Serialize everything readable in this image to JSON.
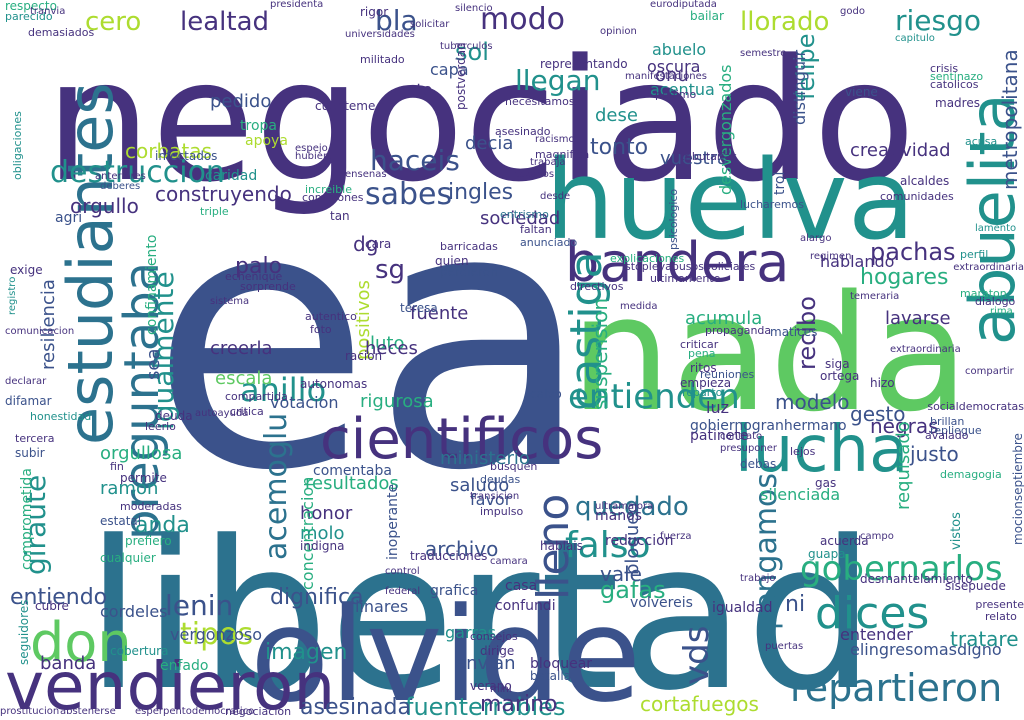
{
  "palette": {
    "c1": "#440154",
    "c2": "#46327e",
    "c3": "#3b528b",
    "c4": "#2c728e",
    "c5": "#21918c",
    "c6": "#28ae80",
    "c7": "#5ec962",
    "c8": "#addc30",
    "c9": "#fde725"
  },
  "words": [
    {
      "text": "ea",
      "color": "c3"
    },
    {
      "text": "libertad",
      "color": "c4"
    },
    {
      "text": "negociado",
      "color": "c2"
    },
    {
      "text": "nada",
      "color": "c7"
    },
    {
      "text": "olvide",
      "color": "c3"
    },
    {
      "text": "huelva",
      "color": "c5"
    },
    {
      "text": "vendieron",
      "color": "c2"
    },
    {
      "text": "estudiantes",
      "color": "c4"
    },
    {
      "text": "abuelita",
      "color": "c5"
    },
    {
      "text": "cientificos",
      "color": "c2"
    },
    {
      "text": "preguntaba",
      "color": "c4"
    },
    {
      "text": "lucha",
      "color": "c5"
    },
    {
      "text": "bandera",
      "color": "c2"
    },
    {
      "text": "castiga",
      "color": "c5"
    },
    {
      "text": "dices",
      "color": "c5"
    },
    {
      "text": "repartieron",
      "color": "c4"
    },
    {
      "text": "gobernarlos",
      "color": "c6"
    },
    {
      "text": "don",
      "color": "c7"
    },
    {
      "text": "lleno",
      "color": "c3"
    },
    {
      "text": "falso",
      "color": "c5"
    },
    {
      "text": "anillo",
      "color": "c5"
    },
    {
      "text": "entienden",
      "color": "c5"
    },
    {
      "text": "haceis",
      "color": "c3"
    },
    {
      "text": "sabes",
      "color": "c3"
    },
    {
      "text": "destruccion",
      "color": "c5"
    },
    {
      "text": "tipos",
      "color": "c8"
    },
    {
      "text": "lenin",
      "color": "c3"
    },
    {
      "text": "igualmente",
      "color": "c5"
    },
    {
      "text": "acemoglu",
      "color": "c4"
    },
    {
      "text": "giraute",
      "color": "c5"
    },
    {
      "text": "vds",
      "color": "c3"
    },
    {
      "text": "pongamos",
      "color": "c4"
    },
    {
      "text": "quedado",
      "color": "c4"
    },
    {
      "text": "llorado",
      "color": "c8"
    },
    {
      "text": "riesgo",
      "color": "c5"
    },
    {
      "text": "lealtad",
      "color": "c2"
    },
    {
      "text": "modo",
      "color": "c2"
    },
    {
      "text": "bla",
      "color": "c3"
    },
    {
      "text": "sol",
      "color": "c5"
    },
    {
      "text": "cero",
      "color": "c8"
    },
    {
      "text": "llegan",
      "color": "c5"
    },
    {
      "text": "felipe",
      "color": "c5"
    },
    {
      "text": "metropolitana",
      "color": "c3"
    },
    {
      "text": "fuenterrobles",
      "color": "c5"
    },
    {
      "text": "asesinada",
      "color": "c3"
    },
    {
      "text": "entiendo",
      "color": "c3"
    },
    {
      "text": "dignifica",
      "color": "c3"
    },
    {
      "text": "gafas",
      "color": "c6"
    },
    {
      "text": "ingles",
      "color": "c3"
    },
    {
      "text": "tonto",
      "color": "c3"
    },
    {
      "text": "pachas",
      "color": "c2"
    },
    {
      "text": "hogares",
      "color": "c6"
    },
    {
      "text": "recibo",
      "color": "c2"
    },
    {
      "text": "creatividad",
      "color": "c2"
    },
    {
      "text": "construyendo",
      "color": "c2"
    },
    {
      "text": "sg",
      "color": "c2"
    },
    {
      "text": "palo",
      "color": "c2"
    },
    {
      "text": "anda",
      "color": "c5"
    },
    {
      "text": "banda",
      "color": "c2"
    },
    {
      "text": "corbatas",
      "color": "c8"
    },
    {
      "text": "orgullo",
      "color": "c2"
    },
    {
      "text": "sociedad",
      "color": "c2"
    },
    {
      "text": "modelo",
      "color": "c3"
    },
    {
      "text": "negras",
      "color": "c2"
    },
    {
      "text": "justo",
      "color": "c3"
    },
    {
      "text": "gesto",
      "color": "c3"
    },
    {
      "text": "marino",
      "color": "c2"
    },
    {
      "text": "imagen",
      "color": "c5"
    },
    {
      "text": "archivo",
      "color": "c3"
    },
    {
      "text": "ni",
      "color": "c3"
    },
    {
      "text": "vale",
      "color": "c3"
    },
    {
      "text": "envian",
      "color": "c3"
    },
    {
      "text": "cortafuegos",
      "color": "c8"
    },
    {
      "text": "positivos",
      "color": "c8"
    },
    {
      "text": "honor",
      "color": "c2"
    },
    {
      "text": "luto",
      "color": "c6"
    },
    {
      "text": "pedido",
      "color": "c3"
    },
    {
      "text": "decia",
      "color": "c3"
    },
    {
      "text": "vuestra",
      "color": "c3"
    },
    {
      "text": "resultados",
      "color": "c6"
    },
    {
      "text": "ministerio",
      "color": "c4"
    },
    {
      "text": "saludo",
      "color": "c3"
    },
    {
      "text": "vergonzoso",
      "color": "c3"
    },
    {
      "text": "acumula",
      "color": "c6"
    },
    {
      "text": "lavarse",
      "color": "c2"
    },
    {
      "text": "dg",
      "color": "c2"
    },
    {
      "text": "suspension",
      "color": "c6"
    },
    {
      "text": "escala",
      "color": "c7"
    },
    {
      "text": "creerla",
      "color": "c2"
    },
    {
      "text": "votacion",
      "color": "c3"
    },
    {
      "text": "molo",
      "color": "c5"
    },
    {
      "text": "concentracion",
      "color": "c6"
    },
    {
      "text": "ramon",
      "color": "c5"
    },
    {
      "text": "favor",
      "color": "c3"
    },
    {
      "text": "cordeles",
      "color": "c3"
    },
    {
      "text": "rigurosa",
      "color": "c6"
    },
    {
      "text": "hablando",
      "color": "c2"
    },
    {
      "text": "gobiernogranhermano",
      "color": "c3"
    },
    {
      "text": "elingresomasdigno",
      "color": "c3"
    },
    {
      "text": "tratare",
      "color": "c5"
    },
    {
      "text": "silenciada",
      "color": "c6"
    },
    {
      "text": "bloqueo",
      "color": "c3"
    },
    {
      "text": "luz",
      "color": "c2"
    },
    {
      "text": "entender",
      "color": "c2"
    },
    {
      "text": "requisado",
      "color": "c6"
    },
    {
      "text": "orgullosa",
      "color": "c6"
    },
    {
      "text": "linares",
      "color": "c3"
    },
    {
      "text": "fuente",
      "color": "c2"
    },
    {
      "text": "heces",
      "color": "c2"
    },
    {
      "text": "onu",
      "color": "c2"
    },
    {
      "text": "dese",
      "color": "c5"
    },
    {
      "text": "capa",
      "color": "c3"
    },
    {
      "text": "rato",
      "color": "c2"
    },
    {
      "text": "distinguir",
      "color": "c3"
    },
    {
      "text": "acentua",
      "color": "c5"
    },
    {
      "text": "desvergonzados",
      "color": "c6"
    },
    {
      "text": "resiliencia",
      "color": "c3"
    },
    {
      "text": "sea",
      "color": "c3"
    },
    {
      "text": "confinamiento",
      "color": "c6"
    },
    {
      "text": "comentaba",
      "color": "c3"
    },
    {
      "text": "abuelo",
      "color": "c5"
    },
    {
      "text": "oscura",
      "color": "c2"
    },
    {
      "text": "representando",
      "color": "c2"
    },
    {
      "text": "necesitamos",
      "color": "c2"
    },
    {
      "text": "magnifica",
      "color": "c2"
    },
    {
      "text": "ultimamente",
      "color": "c2"
    },
    {
      "text": "directivos",
      "color": "c2"
    },
    {
      "text": "anunciado",
      "color": "c3"
    },
    {
      "text": "entrismo",
      "color": "c4"
    },
    {
      "text": "lucharemos",
      "color": "c3"
    },
    {
      "text": "cara",
      "color": "c2"
    },
    {
      "text": "tan",
      "color": "c2"
    },
    {
      "text": "quien",
      "color": "c2"
    },
    {
      "text": "perdieron",
      "color": "c3"
    },
    {
      "text": "teresa",
      "color": "c3"
    },
    {
      "text": "agri",
      "color": "c3"
    },
    {
      "text": "infectados",
      "color": "c3"
    },
    {
      "text": "apoya",
      "color": "c8"
    },
    {
      "text": "caridad",
      "color": "c5"
    },
    {
      "text": "autonomas",
      "color": "c2"
    },
    {
      "text": "racion",
      "color": "c2"
    },
    {
      "text": "compartida",
      "color": "c2"
    },
    {
      "text": "deuda",
      "color": "c2"
    },
    {
      "text": "honestidad",
      "color": "c5"
    },
    {
      "text": "calvo",
      "color": "c3"
    },
    {
      "text": "ritos",
      "color": "c2"
    },
    {
      "text": "empieza",
      "color": "c2"
    },
    {
      "text": "reparto",
      "color": "c5"
    },
    {
      "text": "pena",
      "color": "c6"
    },
    {
      "text": "patinete",
      "color": "c2"
    },
    {
      "text": "grafica",
      "color": "c3"
    },
    {
      "text": "confundi",
      "color": "c2"
    },
    {
      "text": "bloquear",
      "color": "c2"
    },
    {
      "text": "batalla",
      "color": "c3"
    },
    {
      "text": "dirige",
      "color": "c2"
    },
    {
      "text": "verano",
      "color": "c2"
    },
    {
      "text": "manos",
      "color": "c2"
    },
    {
      "text": "reduccion",
      "color": "c2"
    },
    {
      "text": "casa",
      "color": "c2"
    },
    {
      "text": "volvereis",
      "color": "c3"
    },
    {
      "text": "igualdad",
      "color": "c2"
    },
    {
      "text": "garras",
      "color": "c5"
    },
    {
      "text": "prefiero",
      "color": "c6"
    },
    {
      "text": "enfado",
      "color": "c6"
    },
    {
      "text": "cobertura",
      "color": "c5"
    },
    {
      "text": "permite",
      "color": "c2"
    },
    {
      "text": "indigna",
      "color": "c2"
    },
    {
      "text": "tropa",
      "color": "c6"
    },
    {
      "text": "ortega",
      "color": "c2"
    },
    {
      "text": "siga",
      "color": "c2"
    },
    {
      "text": "hizo",
      "color": "c2"
    },
    {
      "text": "matices",
      "color": "c3"
    },
    {
      "text": "alcaldes",
      "color": "c2"
    },
    {
      "text": "trol",
      "color": "c3"
    },
    {
      "text": "madres",
      "color": "c2"
    },
    {
      "text": "viene",
      "color": "c3"
    },
    {
      "text": "psicologico",
      "color": "c3"
    },
    {
      "text": "pedimo",
      "color": "c2"
    },
    {
      "text": "silencio",
      "color": "c2"
    },
    {
      "text": "rigor",
      "color": "c2"
    },
    {
      "text": "presidenta",
      "color": "c2"
    },
    {
      "text": "universidades",
      "color": "c2"
    },
    {
      "text": "solicitar",
      "color": "c2"
    },
    {
      "text": "eurodiputada",
      "color": "c2"
    },
    {
      "text": "semestre",
      "color": "c2"
    },
    {
      "text": "espejo",
      "color": "c2"
    },
    {
      "text": "hubiera",
      "color": "c2"
    },
    {
      "text": "cuenteme",
      "color": "c2"
    },
    {
      "text": "postverdad",
      "color": "c2"
    },
    {
      "text": "tuberculos",
      "color": "c2"
    },
    {
      "text": "racismo",
      "color": "c2"
    },
    {
      "text": "tributarias",
      "color": "c2"
    },
    {
      "text": "extraordinaria",
      "color": "c2"
    },
    {
      "text": "lamento",
      "color": "c5"
    },
    {
      "text": "dialogo",
      "color": "c2"
    },
    {
      "text": "crisis",
      "color": "c2"
    },
    {
      "text": "godo",
      "color": "c2"
    },
    {
      "text": "rima",
      "color": "c6"
    },
    {
      "text": "capitulo",
      "color": "c5"
    },
    {
      "text": "acusa",
      "color": "c5"
    },
    {
      "text": "perfil",
      "color": "c5"
    },
    {
      "text": "socialdemocratas",
      "color": "c2"
    },
    {
      "text": "brillan",
      "color": "c3"
    },
    {
      "text": "repliegue",
      "color": "c3"
    },
    {
      "text": "avalado",
      "color": "c2"
    },
    {
      "text": "demagogia",
      "color": "c6"
    },
    {
      "text": "mocionseptiembre",
      "color": "c3"
    },
    {
      "text": "vistos",
      "color": "c5"
    },
    {
      "text": "acuerda",
      "color": "c2"
    },
    {
      "text": "guapa",
      "color": "c5"
    },
    {
      "text": "desmantelamiento",
      "color": "c2"
    },
    {
      "text": "sisepuede",
      "color": "c2"
    },
    {
      "text": "relato",
      "color": "c2"
    },
    {
      "text": "presente",
      "color": "c2"
    },
    {
      "text": "debas",
      "color": "c3"
    },
    {
      "text": "gas",
      "color": "c2"
    },
    {
      "text": "prostitucion",
      "color": "c2"
    },
    {
      "text": "abstenerse",
      "color": "c2"
    },
    {
      "text": "esperpentodemocratico",
      "color": "c2"
    },
    {
      "text": "negociacion",
      "color": "c2"
    },
    {
      "text": "respecto",
      "color": "c6"
    },
    {
      "text": "parecido",
      "color": "c5"
    },
    {
      "text": "demasiados",
      "color": "c2"
    },
    {
      "text": "obligaciones",
      "color": "c5"
    },
    {
      "text": "comunicacion",
      "color": "c2"
    },
    {
      "text": "declarar",
      "color": "c2"
    },
    {
      "text": "difamar",
      "color": "c3"
    },
    {
      "text": "comprometida",
      "color": "c6"
    },
    {
      "text": "seguidores",
      "color": "c5"
    },
    {
      "text": "registro",
      "color": "c5"
    },
    {
      "text": "exige",
      "color": "c2"
    },
    {
      "text": "tercera",
      "color": "c2"
    },
    {
      "text": "subir",
      "color": "c3"
    },
    {
      "text": "cubre",
      "color": "c2"
    },
    {
      "text": "estatal",
      "color": "c3"
    },
    {
      "text": "moderadas",
      "color": "c2"
    },
    {
      "text": "cualquier",
      "color": "c6"
    },
    {
      "text": "leerlo",
      "color": "c2"
    },
    {
      "text": "critica",
      "color": "c2"
    },
    {
      "text": "fin",
      "color": "c2"
    },
    {
      "text": "autoayuda",
      "color": "c2"
    },
    {
      "text": "foto",
      "color": "c2"
    },
    {
      "text": "autentico",
      "color": "c2"
    },
    {
      "text": "sorprende",
      "color": "c2"
    },
    {
      "text": "echenique",
      "color": "c2"
    },
    {
      "text": "triple",
      "color": "c6"
    },
    {
      "text": "anteriores",
      "color": "c2"
    },
    {
      "text": "deberes",
      "color": "c3"
    },
    {
      "text": "ensenas",
      "color": "c2"
    },
    {
      "text": "increible",
      "color": "c6"
    },
    {
      "text": "comisiones",
      "color": "c2"
    },
    {
      "text": "barricadas",
      "color": "c2"
    },
    {
      "text": "faltan",
      "color": "c2"
    },
    {
      "text": "explicaciones",
      "color": "c6"
    },
    {
      "text": "stopleyabusospoliciales",
      "color": "c2"
    },
    {
      "text": "alargo",
      "color": "c2"
    },
    {
      "text": "regimen",
      "color": "c2"
    },
    {
      "text": "maraton",
      "color": "c6"
    },
    {
      "text": "compartir",
      "color": "c2"
    },
    {
      "text": "extraordinaria",
      "color": "c2"
    },
    {
      "text": "propaganda",
      "color": "c2"
    },
    {
      "text": "criticar",
      "color": "c2"
    },
    {
      "text": "reuniones",
      "color": "c3"
    },
    {
      "text": "asesinado",
      "color": "c2"
    },
    {
      "text": "trabaja",
      "color": "c2"
    },
    {
      "text": "tezanos",
      "color": "c2"
    },
    {
      "text": "comunidades",
      "color": "c2"
    },
    {
      "text": "sentinazo",
      "color": "c6"
    },
    {
      "text": "catolicos",
      "color": "c2"
    },
    {
      "text": "contrato",
      "color": "c2"
    },
    {
      "text": "presuponer",
      "color": "c2"
    },
    {
      "text": "ultramajora",
      "color": "c2"
    },
    {
      "text": "transicion",
      "color": "c2"
    },
    {
      "text": "deudas",
      "color": "c3"
    },
    {
      "text": "busquen",
      "color": "c2"
    },
    {
      "text": "impulso",
      "color": "c2"
    },
    {
      "text": "camara",
      "color": "c2"
    },
    {
      "text": "consejos",
      "color": "c2"
    },
    {
      "text": "mini",
      "color": "c2"
    },
    {
      "text": "bailar",
      "color": "c6"
    },
    {
      "text": "militado",
      "color": "c2"
    },
    {
      "text": "opinion",
      "color": "c2"
    },
    {
      "text": "control",
      "color": "c2"
    },
    {
      "text": "manifestaciones",
      "color": "c2"
    },
    {
      "text": "tranvia",
      "color": "c2"
    },
    {
      "text": "lejos",
      "color": "c2"
    },
    {
      "text": "federal",
      "color": "c2"
    },
    {
      "text": "inoperante",
      "color": "c3"
    },
    {
      "text": "traducciones",
      "color": "c2"
    },
    {
      "text": "hablais",
      "color": "c2"
    },
    {
      "text": "temeraria",
      "color": "c2"
    },
    {
      "text": "puertas",
      "color": "c2"
    },
    {
      "text": "trabajo",
      "color": "c2"
    },
    {
      "text": "desde",
      "color": "c2"
    },
    {
      "text": "sistema",
      "color": "c2"
    },
    {
      "text": "medida",
      "color": "c2"
    },
    {
      "text": "campo",
      "color": "c2"
    },
    {
      "text": "fuerza",
      "color": "c2"
    }
  ]
}
